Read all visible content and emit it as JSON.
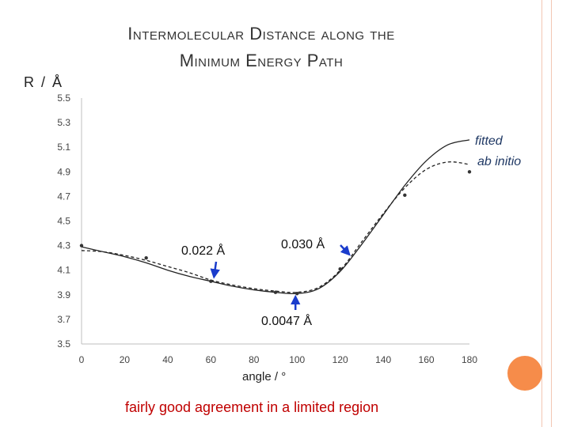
{
  "slide": {
    "title_line1": "Intermolecular Distance along the",
    "title_line2": "Minimum Energy Path",
    "caption": "fairly good agreement in a limited region",
    "caption_color": "#c00000",
    "accent_color": "#f68c4a"
  },
  "chart_data": {
    "type": "line",
    "ylabel": "R / Å",
    "xlabel": "angle / °",
    "xlim": [
      0,
      180
    ],
    "ylim": [
      3.5,
      5.5
    ],
    "x_ticks": [
      "0",
      "20",
      "40",
      "60",
      "80",
      "100",
      "120",
      "140",
      "160",
      "180"
    ],
    "y_ticks": [
      "3.5",
      "3.7",
      "3.9",
      "4.1",
      "4.3",
      "4.5",
      "4.7",
      "4.9",
      "5.1",
      "5.3",
      "5.5"
    ],
    "grid": false,
    "series": [
      {
        "name": "fitted",
        "style": "solid",
        "x": [
          0,
          10,
          20,
          30,
          40,
          50,
          60,
          70,
          80,
          90,
          100,
          110,
          120,
          130,
          140,
          150,
          160,
          170,
          180
        ],
        "y": [
          4.29,
          4.25,
          4.21,
          4.16,
          4.1,
          4.05,
          4.01,
          3.97,
          3.94,
          3.92,
          3.91,
          3.95,
          4.09,
          4.31,
          4.55,
          4.79,
          4.99,
          5.12,
          5.16
        ]
      },
      {
        "name": "ab initio",
        "style": "dashed",
        "x": [
          0,
          10,
          20,
          30,
          40,
          50,
          60,
          70,
          80,
          90,
          100,
          110,
          120,
          130,
          140,
          150,
          160,
          170,
          180
        ],
        "y": [
          4.26,
          4.25,
          4.22,
          4.18,
          4.13,
          4.08,
          4.02,
          3.98,
          3.95,
          3.93,
          3.92,
          3.96,
          4.1,
          4.33,
          4.56,
          4.77,
          4.92,
          4.98,
          4.96
        ]
      }
    ],
    "markers": {
      "x": [
        0,
        30,
        60,
        90,
        100,
        120,
        150,
        180
      ],
      "y": [
        4.3,
        4.2,
        4.01,
        3.92,
        3.91,
        4.11,
        4.71,
        4.9
      ]
    },
    "annotations": [
      {
        "text": "0.022 Å",
        "x": 60,
        "y": 4.02
      },
      {
        "text": "0.030 Å",
        "x": 122,
        "y": 4.26
      },
      {
        "text": "0.0047 Å",
        "x": 100,
        "y": 3.91
      }
    ],
    "arrow_color": "#1a3ccc"
  }
}
